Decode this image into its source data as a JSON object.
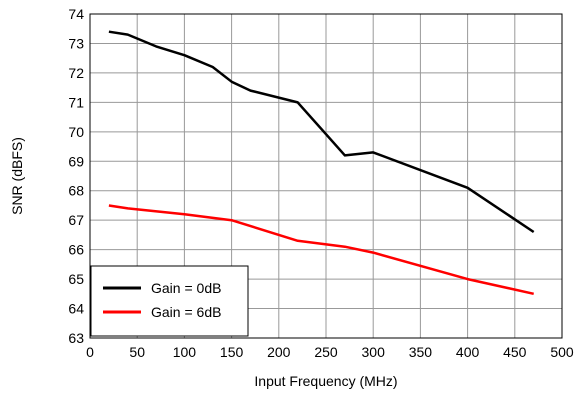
{
  "chart_data": {
    "type": "line",
    "title": "",
    "xlabel": "Input Frequency (MHz)",
    "ylabel": "SNR (dBFS)",
    "xlim": [
      0,
      500
    ],
    "ylim": [
      63,
      74
    ],
    "xticks": [
      0,
      50,
      100,
      150,
      200,
      250,
      300,
      350,
      400,
      450,
      500
    ],
    "yticks": [
      63,
      64,
      65,
      66,
      67,
      68,
      69,
      70,
      71,
      72,
      73,
      74
    ],
    "grid": true,
    "legend_position": "bottom-left",
    "series": [
      {
        "name": "Gain = 0dB",
        "color": "#000000",
        "x": [
          20,
          40,
          70,
          100,
          130,
          150,
          170,
          220,
          270,
          300,
          400,
          470
        ],
        "y": [
          73.4,
          73.3,
          72.9,
          72.6,
          72.2,
          71.7,
          71.4,
          71.0,
          69.2,
          69.3,
          68.1,
          66.6
        ]
      },
      {
        "name": "Gain = 6dB",
        "color": "#ff0000",
        "x": [
          20,
          40,
          100,
          150,
          220,
          270,
          300,
          400,
          470
        ],
        "y": [
          67.5,
          67.4,
          67.2,
          67.0,
          66.3,
          66.1,
          65.9,
          65.0,
          64.5
        ]
      }
    ]
  }
}
